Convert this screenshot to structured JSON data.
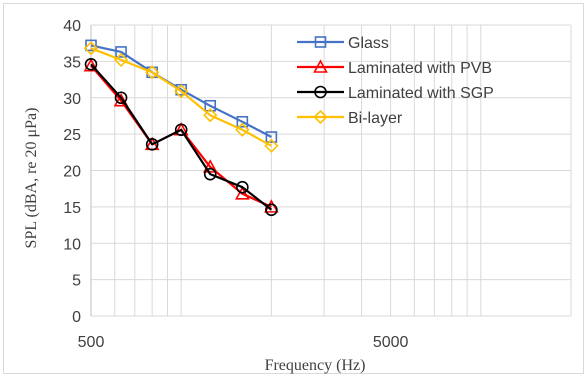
{
  "chart_data": {
    "type": "line",
    "title": "",
    "xlabel": "Frequency (Hz)",
    "ylabel": "SPL (dBA, re 20 μPa)",
    "xscale": "log",
    "xlim": [
      500,
      20000
    ],
    "ylim": [
      0,
      40
    ],
    "yticks": [
      0,
      5,
      10,
      15,
      20,
      25,
      30,
      35,
      40
    ],
    "xtick_labels": [
      {
        "value": 500,
        "label": "500"
      },
      {
        "value": 5000,
        "label": "5000"
      }
    ],
    "grid": true,
    "legend_position": "top-right",
    "x": [
      500,
      630,
      800,
      1000,
      1250,
      1600,
      2000
    ],
    "series": [
      {
        "name": "Glass",
        "color": "#4472C4",
        "marker": "square",
        "values": [
          37.2,
          36.3,
          33.5,
          31.1,
          28.9,
          26.7,
          24.6
        ]
      },
      {
        "name": "Laminated with PVB",
        "color": "#FF0000",
        "marker": "triangle",
        "values": [
          34.4,
          29.6,
          23.6,
          25.6,
          20.5,
          16.8,
          15.0
        ]
      },
      {
        "name": "Laminated with SGP",
        "color": "#000000",
        "marker": "circle",
        "values": [
          34.6,
          30.0,
          23.6,
          25.6,
          19.5,
          17.7,
          14.6
        ]
      },
      {
        "name": "Bi-layer",
        "color": "#FFC000",
        "marker": "diamond",
        "values": [
          36.8,
          35.2,
          33.5,
          30.9,
          27.6,
          25.6,
          23.4
        ]
      }
    ]
  }
}
